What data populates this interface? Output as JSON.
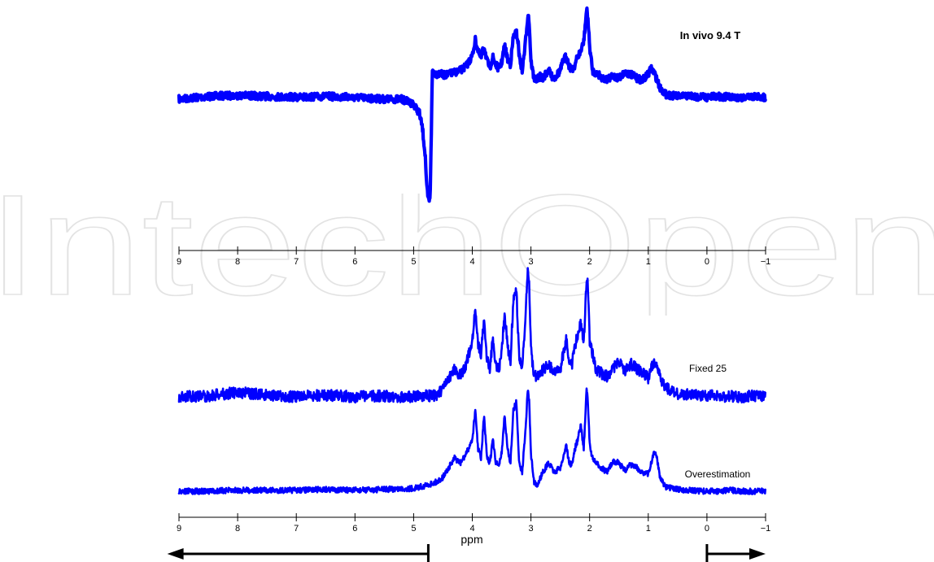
{
  "watermark": {
    "text": "IntechOpen",
    "color": "#e3e3e3"
  },
  "chart_data": [
    {
      "type": "line",
      "title": "",
      "xlabel": "",
      "ylabel": "",
      "xlim": [
        9,
        -1
      ],
      "x_reversed": true,
      "xticks": [
        9,
        8,
        7,
        6,
        5,
        4,
        3,
        2,
        1,
        0,
        -1
      ],
      "xtick_labels": [
        "9",
        "8",
        "7",
        "6",
        "5",
        "4",
        "3",
        "2",
        "1",
        "0",
        "−1"
      ],
      "ylim": [
        -1.05,
        1.05
      ],
      "grid": false,
      "legend": "none",
      "series": [
        {
          "name": "",
          "annotation": "In vivo 9.4 T",
          "color": "#0000ff",
          "x": [
            9.0,
            8.5,
            8.0,
            7.5,
            7.0,
            6.5,
            6.0,
            5.5,
            5.2,
            5.0,
            4.9,
            4.85,
            4.8,
            4.78,
            4.75,
            4.72,
            4.7,
            4.68,
            4.65,
            4.6,
            4.55,
            4.5,
            4.4,
            4.3,
            4.2,
            4.1,
            4.0,
            3.95,
            3.9,
            3.85,
            3.8,
            3.75,
            3.7,
            3.65,
            3.6,
            3.55,
            3.5,
            3.45,
            3.4,
            3.35,
            3.3,
            3.25,
            3.22,
            3.2,
            3.15,
            3.1,
            3.05,
            3.03,
            3.0,
            2.95,
            2.9,
            2.85,
            2.8,
            2.75,
            2.7,
            2.65,
            2.6,
            2.55,
            2.5,
            2.45,
            2.4,
            2.35,
            2.3,
            2.25,
            2.2,
            2.15,
            2.1,
            2.05,
            2.03,
            2.0,
            1.95,
            1.9,
            1.85,
            1.8,
            1.7,
            1.6,
            1.5,
            1.4,
            1.3,
            1.2,
            1.1,
            1.0,
            0.95,
            0.9,
            0.85,
            0.8,
            0.7,
            0.6,
            0.5,
            0.4,
            0.3,
            0.2,
            0.1,
            0.0,
            -0.2,
            -0.4,
            -0.6,
            -0.8,
            -1.0
          ],
          "y": [
            0.0,
            0.03,
            0.04,
            0.03,
            0.02,
            0.03,
            0.02,
            0.0,
            0.0,
            -0.05,
            -0.15,
            -0.3,
            -0.6,
            -0.9,
            -1.05,
            -1.05,
            -0.4,
            0.3,
            0.28,
            0.26,
            0.27,
            0.25,
            0.26,
            0.28,
            0.3,
            0.35,
            0.45,
            0.62,
            0.5,
            0.42,
            0.56,
            0.4,
            0.33,
            0.44,
            0.36,
            0.32,
            0.38,
            0.56,
            0.42,
            0.36,
            0.65,
            0.7,
            0.6,
            0.45,
            0.3,
            0.55,
            0.9,
            0.8,
            0.4,
            0.22,
            0.2,
            0.24,
            0.22,
            0.26,
            0.3,
            0.24,
            0.22,
            0.26,
            0.3,
            0.4,
            0.45,
            0.35,
            0.3,
            0.36,
            0.45,
            0.5,
            0.6,
            0.94,
            0.86,
            0.55,
            0.3,
            0.27,
            0.26,
            0.23,
            0.2,
            0.24,
            0.22,
            0.28,
            0.26,
            0.22,
            0.2,
            0.26,
            0.32,
            0.28,
            0.2,
            0.12,
            0.05,
            0.04,
            0.03,
            0.03,
            0.04,
            0.02,
            0.03,
            0.02,
            0.03,
            0.02,
            0.02,
            0.03,
            0.02
          ]
        }
      ]
    },
    {
      "type": "line",
      "title": "",
      "xlabel": "ppm",
      "ylabel": "",
      "xlim": [
        9,
        -1
      ],
      "x_reversed": true,
      "xticks": [
        9,
        8,
        7,
        6,
        5,
        4,
        3,
        2,
        1,
        0,
        -1
      ],
      "xtick_labels": [
        "9",
        "8",
        "7",
        "6",
        "5",
        "4",
        "3",
        "2",
        "1",
        "0",
        "−1"
      ],
      "ylim": [
        -0.2,
        2.4
      ],
      "grid": false,
      "legend": "none",
      "series": [
        {
          "name": "",
          "annotation": "Fixed 25",
          "color": "#0000ff",
          "offset": 1.0,
          "x": [
            9.0,
            8.5,
            8.0,
            7.5,
            7.0,
            6.5,
            6.0,
            5.5,
            5.0,
            4.8,
            4.6,
            4.5,
            4.4,
            4.3,
            4.2,
            4.1,
            4.0,
            3.95,
            3.9,
            3.85,
            3.8,
            3.75,
            3.7,
            3.65,
            3.6,
            3.55,
            3.5,
            3.45,
            3.4,
            3.35,
            3.3,
            3.25,
            3.22,
            3.2,
            3.15,
            3.1,
            3.05,
            3.03,
            3.0,
            2.95,
            2.9,
            2.8,
            2.7,
            2.6,
            2.5,
            2.45,
            2.4,
            2.35,
            2.3,
            2.25,
            2.2,
            2.15,
            2.1,
            2.05,
            2.03,
            2.0,
            1.95,
            1.9,
            1.8,
            1.7,
            1.6,
            1.5,
            1.4,
            1.3,
            1.2,
            1.1,
            1.0,
            0.95,
            0.9,
            0.85,
            0.8,
            0.7,
            0.5,
            0.3,
            0.1,
            0.0,
            -0.2,
            -0.4,
            -0.6,
            -0.8,
            -1.0
          ],
          "y": [
            0.0,
            0.01,
            0.05,
            0.02,
            0.0,
            0.02,
            0.0,
            0.01,
            0.0,
            0.01,
            0.02,
            0.08,
            0.18,
            0.3,
            0.22,
            0.35,
            0.6,
            0.95,
            0.55,
            0.45,
            0.85,
            0.4,
            0.3,
            0.62,
            0.35,
            0.3,
            0.45,
            0.9,
            0.55,
            0.35,
            1.05,
            1.15,
            0.7,
            0.4,
            0.3,
            0.75,
            1.4,
            1.2,
            0.5,
            0.25,
            0.2,
            0.28,
            0.35,
            0.25,
            0.3,
            0.45,
            0.62,
            0.4,
            0.35,
            0.55,
            0.65,
            0.8,
            0.55,
            1.3,
            1.2,
            0.6,
            0.45,
            0.3,
            0.25,
            0.22,
            0.3,
            0.38,
            0.28,
            0.35,
            0.3,
            0.25,
            0.2,
            0.3,
            0.38,
            0.32,
            0.2,
            0.1,
            0.03,
            0.02,
            0.01,
            0.02,
            0.0,
            0.01,
            0.0,
            0.01,
            0.0
          ]
        },
        {
          "name": "",
          "annotation": "Overestimation",
          "color": "#0000ff",
          "offset": 0.0,
          "x": [
            9.0,
            8.5,
            8.0,
            7.5,
            7.0,
            6.5,
            6.0,
            5.5,
            5.0,
            4.8,
            4.6,
            4.5,
            4.4,
            4.3,
            4.2,
            4.1,
            4.0,
            3.95,
            3.9,
            3.85,
            3.8,
            3.75,
            3.7,
            3.65,
            3.6,
            3.55,
            3.5,
            3.45,
            3.4,
            3.35,
            3.3,
            3.25,
            3.22,
            3.2,
            3.15,
            3.1,
            3.05,
            3.03,
            3.0,
            2.95,
            2.9,
            2.8,
            2.7,
            2.6,
            2.5,
            2.45,
            2.4,
            2.35,
            2.3,
            2.25,
            2.2,
            2.15,
            2.1,
            2.05,
            2.03,
            2.0,
            1.95,
            1.9,
            1.8,
            1.7,
            1.6,
            1.5,
            1.4,
            1.3,
            1.2,
            1.1,
            1.0,
            0.95,
            0.9,
            0.85,
            0.8,
            0.7,
            0.5,
            0.3,
            0.1,
            0.0,
            -0.2,
            -0.4,
            -0.6,
            -0.8,
            -1.0
          ],
          "y": [
            0.0,
            0.0,
            0.01,
            0.01,
            0.01,
            0.02,
            0.01,
            0.02,
            0.03,
            0.06,
            0.1,
            0.15,
            0.25,
            0.35,
            0.3,
            0.4,
            0.55,
            0.85,
            0.45,
            0.35,
            0.8,
            0.35,
            0.3,
            0.55,
            0.3,
            0.28,
            0.4,
            0.8,
            0.45,
            0.3,
            0.85,
            0.95,
            0.55,
            0.3,
            0.2,
            0.6,
            1.1,
            0.95,
            0.4,
            0.1,
            0.05,
            0.2,
            0.3,
            0.2,
            0.25,
            0.35,
            0.5,
            0.3,
            0.28,
            0.45,
            0.55,
            0.7,
            0.45,
            1.1,
            0.95,
            0.5,
            0.35,
            0.3,
            0.25,
            0.2,
            0.32,
            0.3,
            0.22,
            0.28,
            0.25,
            0.2,
            0.18,
            0.3,
            0.42,
            0.35,
            0.15,
            0.04,
            0.02,
            0.01,
            0.0,
            0.0,
            0.0,
            0.01,
            0.0,
            0.0,
            0.0
          ]
        }
      ],
      "annotations": {
        "left_arrow": {
          "from": 4.75,
          "to": 9.2
        },
        "right_arrow": {
          "from": 0.0,
          "to": -1.0
        }
      }
    }
  ]
}
